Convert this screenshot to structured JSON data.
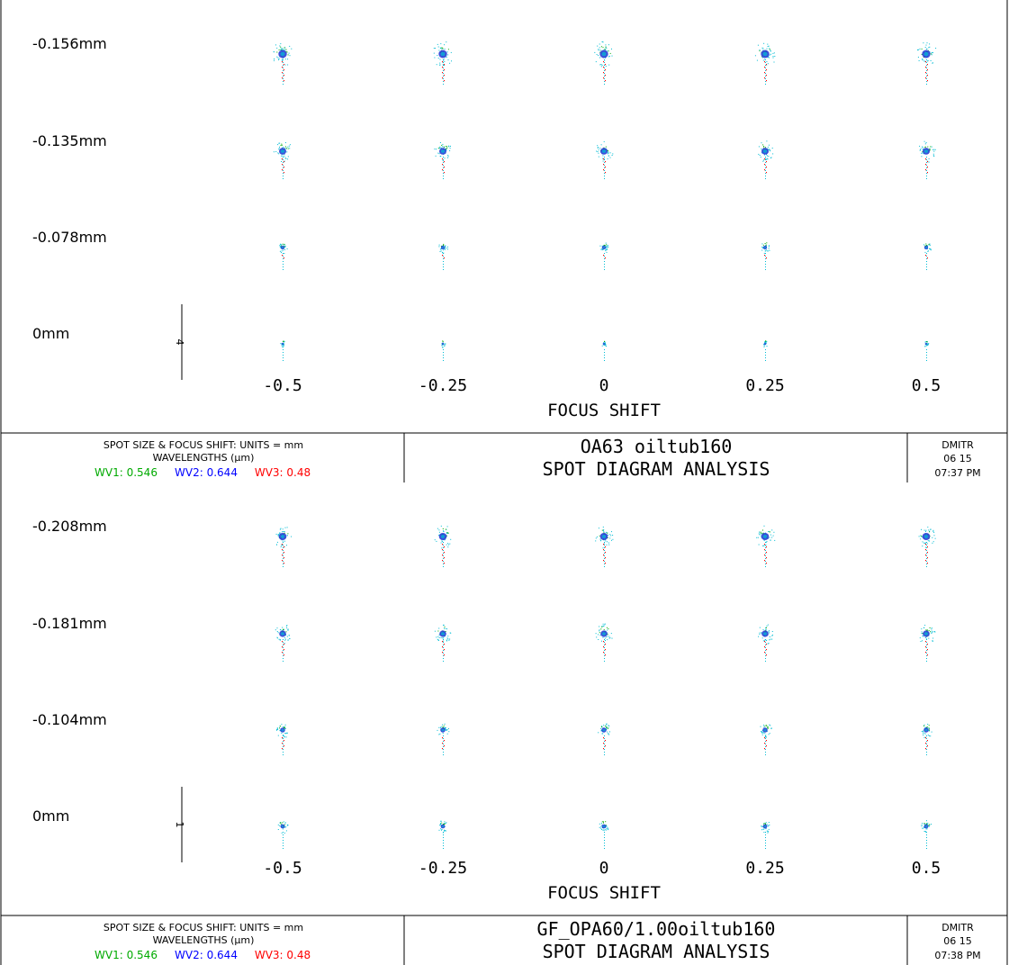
{
  "chart_data": [
    {
      "type": "scatter",
      "title": "OA63 oiltub160",
      "subtitle": "SPOT DIAGRAM ANALYSIS",
      "xlabel": "FOCUS SHIFT",
      "x": [
        "-0.5",
        "-0.25",
        "0",
        "0.25",
        "0.5"
      ],
      "row_labels": [
        "-0.156mm",
        "-0.135mm",
        "-0.078mm",
        "0mm"
      ],
      "scale_bar": "4",
      "spots": [
        {
          "row": "-0.156mm",
          "red_tail": 1.0,
          "size": 1.0
        },
        {
          "row": "-0.135mm",
          "red_tail": 0.8,
          "size": 0.85
        },
        {
          "row": "-0.078mm",
          "red_tail": 0.2,
          "size": 0.45
        },
        {
          "row": "0mm",
          "red_tail": 0.0,
          "size": 0.15
        }
      ],
      "info": {
        "line1": "SPOT SIZE & FOCUS SHIFT: UNITS = mm",
        "line2": "WAVELENGTHS (μm)",
        "wavelengths": [
          {
            "label": "WV1: 0.546",
            "color": "#00aa00"
          },
          {
            "label": "WV2: 0.644",
            "color": "#0000ff"
          },
          {
            "label": "WV3: 0.48",
            "color": "#ff0000"
          }
        ]
      },
      "stamp": {
        "user": "DMITR",
        "date": "06  15",
        "time": "07:37 PM"
      }
    },
    {
      "type": "scatter",
      "title": "GF_OPA60/1.00oiltub160",
      "subtitle": "SPOT DIAGRAM ANALYSIS",
      "xlabel": "FOCUS SHIFT",
      "x": [
        "-0.5",
        "-0.25",
        "0",
        "0.25",
        "0.5"
      ],
      "row_labels": [
        "-0.208mm",
        "-0.181mm",
        "-0.104mm",
        "0mm"
      ],
      "scale_bar": "1",
      "spots": [
        {
          "row": "-0.208mm",
          "red_tail": 1.0,
          "size": 0.9
        },
        {
          "row": "-0.181mm",
          "red_tail": 0.8,
          "size": 0.8
        },
        {
          "row": "-0.104mm",
          "red_tail": 0.6,
          "size": 0.6
        },
        {
          "row": "0mm",
          "red_tail": 0.0,
          "size": 0.5
        }
      ],
      "info": {
        "line1": "SPOT SIZE & FOCUS SHIFT: UNITS = mm",
        "line2": "WAVELENGTHS (μm)",
        "wavelengths": [
          {
            "label": "WV1: 0.546",
            "color": "#00aa00"
          },
          {
            "label": "WV2: 0.644",
            "color": "#0000ff"
          },
          {
            "label": "WV3: 0.48",
            "color": "#ff0000"
          }
        ]
      },
      "stamp": {
        "user": "DMITR",
        "date": "06  15",
        "time": "07:38 PM"
      }
    }
  ]
}
